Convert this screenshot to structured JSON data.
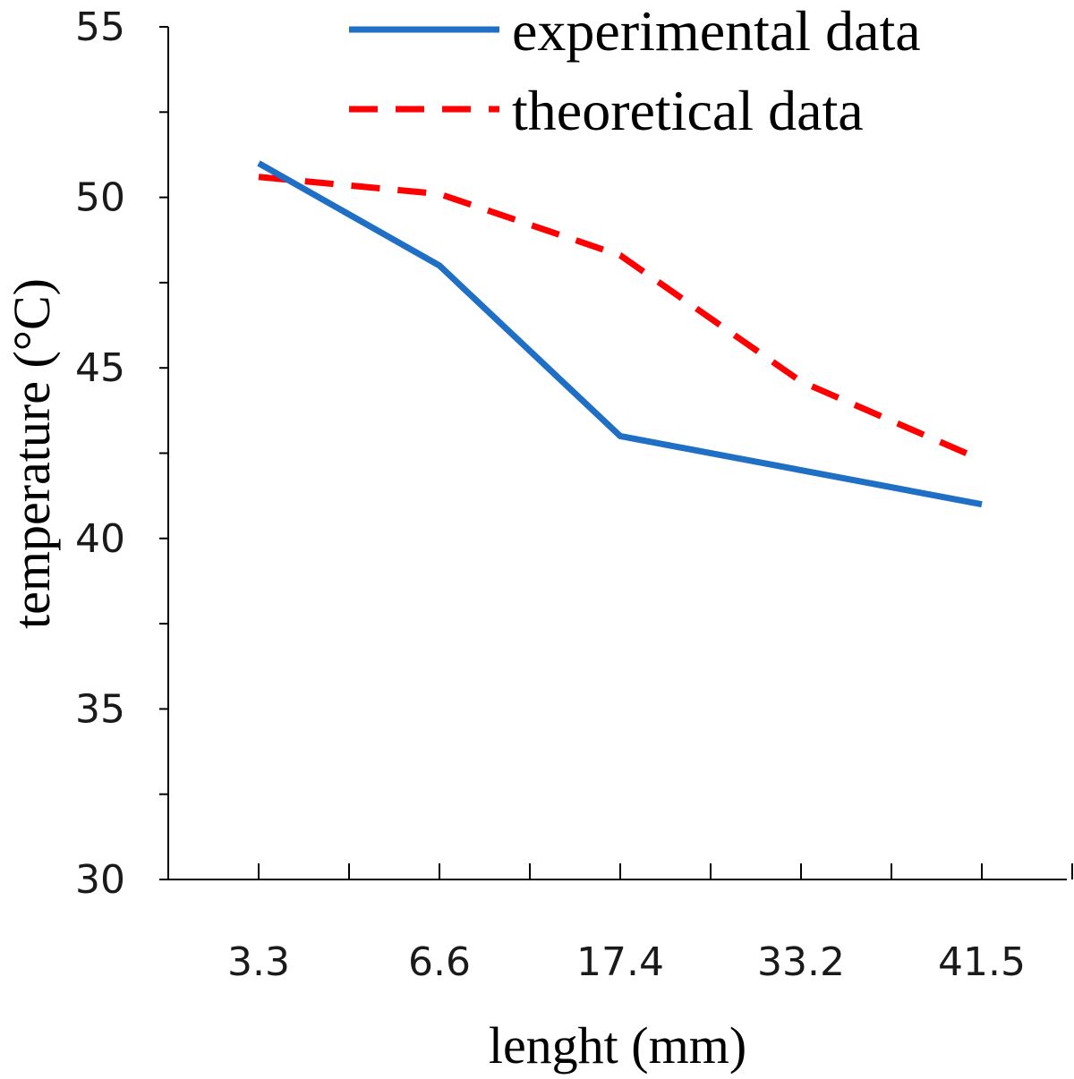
{
  "chart_data": {
    "type": "line",
    "categories": [
      "3.3",
      "6.6",
      "17.4",
      "33.2",
      "41.5"
    ],
    "series": [
      {
        "name": "experimental data",
        "values": [
          51.0,
          48.0,
          43.0,
          42.0,
          41.0
        ],
        "color": "#1f6fc5",
        "style": "solid"
      },
      {
        "name": "theoretical data",
        "values": [
          50.6,
          50.1,
          48.3,
          44.6,
          42.3
        ],
        "color": "#ff0000",
        "style": "dashed"
      }
    ],
    "title": "",
    "xlabel": "lenght (mm)",
    "ylabel": "temperature (°C)",
    "ylim": [
      30,
      55
    ],
    "yticks": [
      "30",
      "35",
      "40",
      "45",
      "50",
      "55"
    ],
    "grid": false,
    "legend_position": "top-right"
  }
}
